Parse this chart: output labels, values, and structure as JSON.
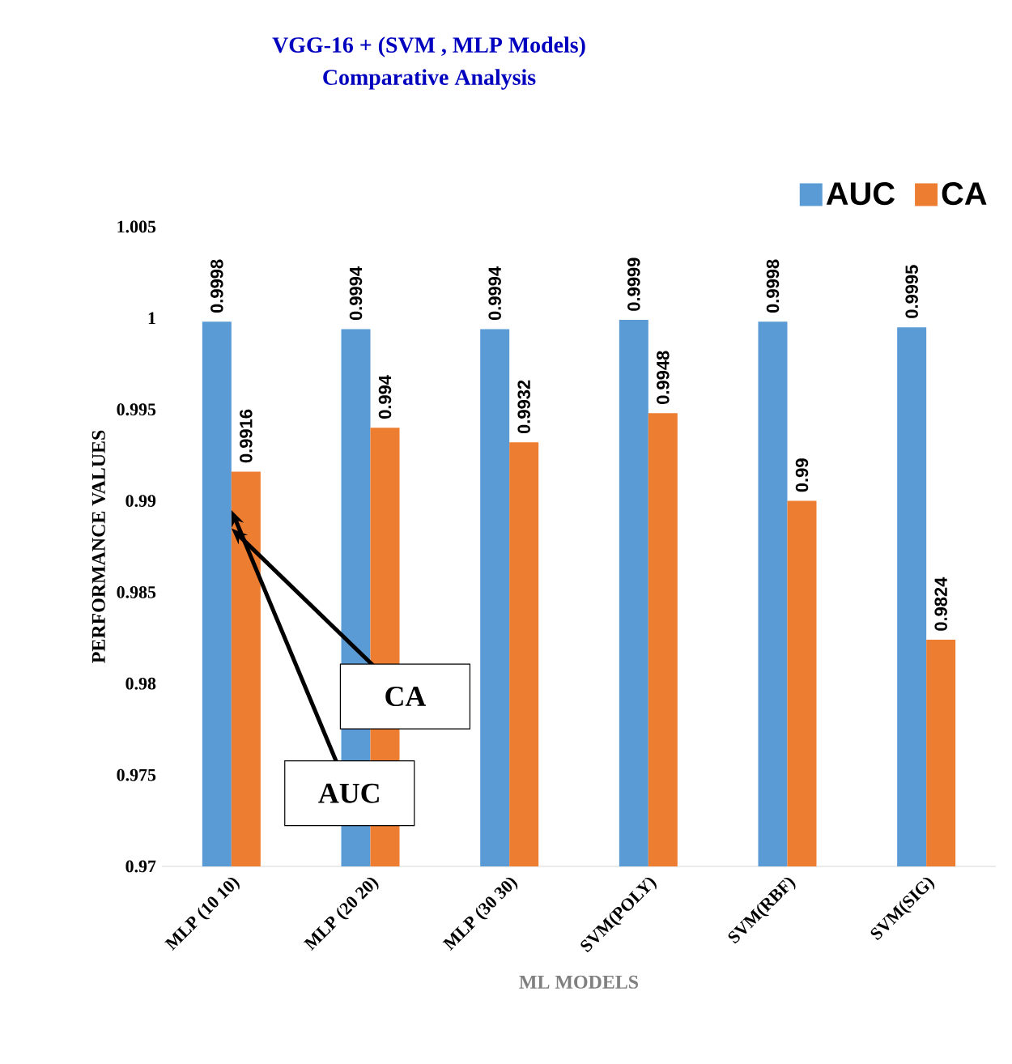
{
  "chart_data": {
    "type": "bar",
    "title": "VGG-16 +  (SVM , MLP Models)",
    "subtitle": "Comparative Analysis",
    "xlabel": "ML MODELS",
    "ylabel": "PERFORMANCE VALUES",
    "categories": [
      "MLP (10 10)",
      "MLP (20 20)",
      "MLP (30 30)",
      "SVM(POLY)",
      "SVM(RBF)",
      "SVM(SIG)"
    ],
    "series": [
      {
        "name": "AUC",
        "color": "#5b9bd5",
        "values": [
          0.9998,
          0.9994,
          0.9994,
          0.9999,
          0.9998,
          0.9995
        ]
      },
      {
        "name": "CA",
        "color": "#ed7d31",
        "values": [
          0.9916,
          0.994,
          0.9932,
          0.9948,
          0.99,
          0.9824
        ]
      }
    ],
    "ylim": [
      0.97,
      1.005
    ],
    "yticks": [
      0.97,
      0.975,
      0.98,
      0.985,
      0.99,
      0.995,
      1,
      1.005
    ],
    "data_labels": true,
    "legend": "top right",
    "grid": false,
    "annotations": [
      {
        "text": "AUC",
        "x": "MLP (10 10)",
        "y": 0.9895
      },
      {
        "text": "CA",
        "x": "MLP (10 10)",
        "y": 0.9885
      }
    ]
  }
}
